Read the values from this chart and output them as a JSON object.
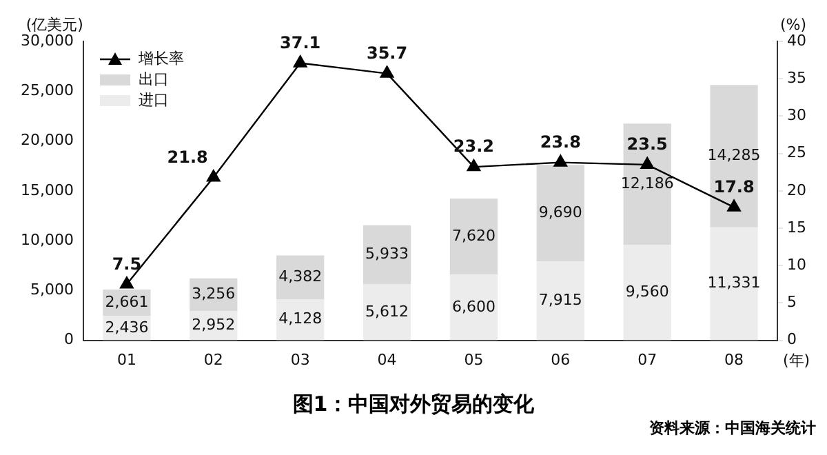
{
  "chart_data": {
    "type": "bar",
    "title": "图1：中国对外贸易的变化",
    "ylabel": "(亿美元)",
    "y2label": "(%)",
    "xlabel": "(年)",
    "annotations": [
      "资料来源：中国海关统计"
    ],
    "categories": [
      "01",
      "02",
      "03",
      "04",
      "05",
      "06",
      "07",
      "08"
    ],
    "stacked": true,
    "series": [
      {
        "name": "进口",
        "color": "#ececec",
        "values": [
          2436,
          2952,
          4128,
          5612,
          6600,
          7915,
          9560,
          11331
        ],
        "value_labels": [
          "2,436",
          "2,952",
          "4,128",
          "5,612",
          "6,600",
          "7,915",
          "9,560",
          "11,331"
        ]
      },
      {
        "name": "出口",
        "color": "#d9d9d9",
        "values": [
          2661,
          3256,
          4382,
          5933,
          7620,
          9690,
          12186,
          14285
        ],
        "value_labels": [
          "2,661",
          "3,256",
          "4,382",
          "5,933",
          "7,620",
          "9,690",
          "12,186",
          "14,285"
        ]
      },
      {
        "name": "增长率",
        "type": "line",
        "axis": "y2",
        "color": "#000000",
        "marker": "triangle",
        "line_style": "solid",
        "values": [
          7.5,
          21.8,
          37.1,
          35.7,
          23.2,
          23.8,
          23.5,
          17.8
        ],
        "value_labels": [
          "7.5",
          "21.8",
          "37.1",
          "35.7",
          "23.2",
          "23.8",
          "23.5",
          "17.8"
        ]
      }
    ],
    "ylim": [
      0,
      30000
    ],
    "yticks": [
      {
        "value": 0,
        "label": "0"
      },
      {
        "value": 5000,
        "label": "5,000"
      },
      {
        "value": 10000,
        "label": "10,000"
      },
      {
        "value": 15000,
        "label": "15,000"
      },
      {
        "value": 20000,
        "label": "20,000"
      },
      {
        "value": 25000,
        "label": "25,000"
      },
      {
        "value": 30000,
        "label": "30,000"
      }
    ],
    "y2lim": [
      0,
      40
    ],
    "y2ticks": [
      0,
      5,
      10,
      15,
      20,
      25,
      30,
      35,
      40
    ],
    "grid": false,
    "legend": "top left"
  }
}
